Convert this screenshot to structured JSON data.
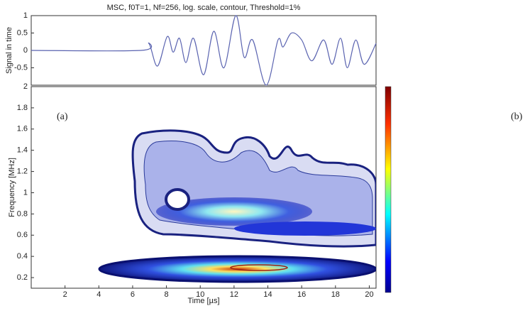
{
  "chart_data": [
    {
      "type": "line",
      "title": "MSC, f0T=1, Nf=256, log. scale, contour, Threshold=1%",
      "y_label": "Signal in time",
      "x": [
        0,
        6.5,
        6.96,
        7.47,
        8.05,
        8.4,
        8.77,
        9.15,
        9.6,
        10.2,
        10.8,
        11.4,
        12.1,
        12.6,
        13.1,
        13.9,
        14.6,
        14.9,
        15.4,
        16.0,
        16.6,
        17.3,
        17.8,
        18.3,
        18.7,
        19.2,
        19.7,
        20.4
      ],
      "values": [
        0,
        0,
        0.2,
        -0.45,
        0.4,
        -0.05,
        0.35,
        -0.35,
        0.35,
        -0.7,
        0.55,
        -0.5,
        1,
        -0.2,
        0.3,
        -1,
        0.3,
        0.1,
        0.5,
        0.3,
        -0.3,
        0.3,
        -0.4,
        0.35,
        -0.5,
        0.3,
        -0.4,
        0.2
      ],
      "color": "#5a63b0",
      "xlim": [
        0,
        20.4
      ],
      "ylim": [
        -1,
        1
      ],
      "yticks": [
        -0.5,
        0,
        0.5,
        1
      ]
    },
    {
      "type": "contour",
      "x_label": "Time [µs]",
      "y_label": "Frequency [MHz]",
      "xlim": [
        0,
        20.4
      ],
      "ylim": [
        0.1,
        2
      ],
      "xticks": [
        2,
        4,
        6,
        8,
        10,
        12,
        14,
        16,
        18,
        20
      ],
      "yticks": [
        0.2,
        0.4,
        0.6,
        0.8,
        1,
        1.2,
        1.4,
        1.6,
        1.8,
        2
      ],
      "annotations": [
        "(a)",
        "(b)"
      ]
    }
  ]
}
